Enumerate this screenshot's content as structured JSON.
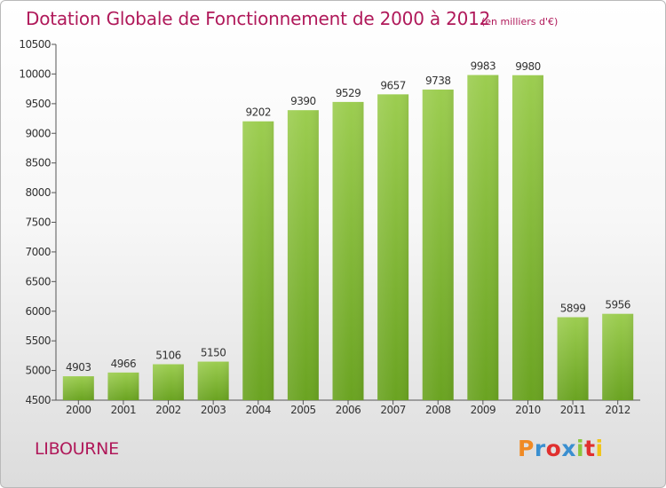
{
  "chart_data": {
    "type": "bar",
    "title": "Dotation Globale de Fonctionnement de 2000 à 2012",
    "subtitle": "(en milliers d'€)",
    "xlabel": "",
    "ylabel": "",
    "categories": [
      "2000",
      "2001",
      "2002",
      "2003",
      "2004",
      "2005",
      "2006",
      "2007",
      "2008",
      "2009",
      "2010",
      "2011",
      "2012"
    ],
    "values": [
      4903,
      4966,
      5106,
      5150,
      9202,
      9390,
      9529,
      9657,
      9738,
      9983,
      9980,
      5899,
      5956
    ],
    "ylim": [
      4500,
      10500
    ],
    "yticks": [
      4500,
      5000,
      5500,
      6000,
      6500,
      7000,
      7500,
      8000,
      8500,
      9000,
      9500,
      10000,
      10500
    ],
    "grid": false,
    "bar_color": "#8cc63e"
  },
  "footer": {
    "commune": "LIBOURNE",
    "brand": "Proxiti",
    "brand_colors": [
      "#f08a24",
      "#3a8fd0",
      "#e0302f",
      "#3a8fd0",
      "#8cc63e",
      "#e0302f",
      "#f0c419"
    ]
  },
  "colors": {
    "title": "#b0195a",
    "axis_text": "#333333"
  }
}
